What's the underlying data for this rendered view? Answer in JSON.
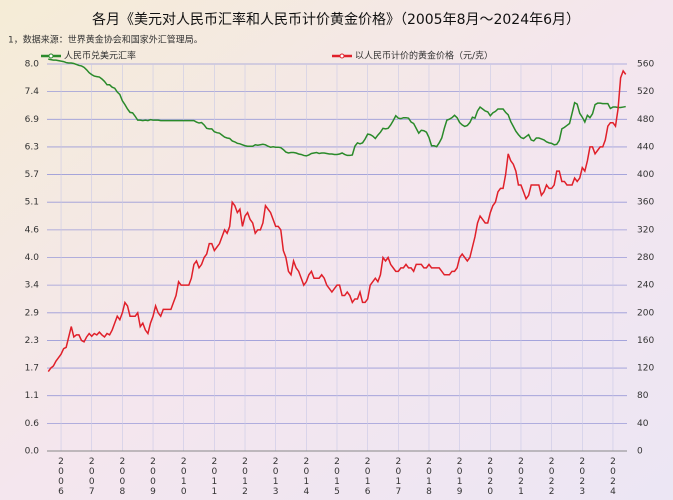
{
  "chart_data": {
    "type": "line",
    "title": "各月《美元对人民币汇率和人民币计价黄金价格》（2005年8月～2024年6月）",
    "note": "1，数据来源：世界黄金协会和国家外汇管理局。",
    "categories": [
      null,
      null,
      null,
      null,
      null,
      "2006",
      null,
      null,
      null,
      null,
      null,
      null,
      null,
      null,
      null,
      null,
      null,
      "2007",
      null,
      null,
      null,
      null,
      null,
      null,
      null,
      null,
      null,
      null,
      null,
      "2008",
      null,
      null,
      null,
      null,
      null,
      null,
      null,
      null,
      null,
      null,
      null,
      "2009",
      null,
      null,
      null,
      null,
      null,
      null,
      null,
      null,
      null,
      null,
      null,
      "2010",
      null,
      null,
      null,
      null,
      null,
      null,
      null,
      null,
      null,
      null,
      null,
      "2011",
      null,
      null,
      null,
      null,
      null,
      null,
      null,
      null,
      null,
      null,
      null,
      "2012",
      null,
      null,
      null,
      null,
      null,
      null,
      null,
      null,
      null,
      null,
      null,
      "2013",
      null,
      null,
      null,
      null,
      null,
      null,
      null,
      null,
      null,
      null,
      null,
      "2014",
      null,
      null,
      null,
      null,
      null,
      null,
      null,
      null,
      null,
      null,
      null,
      "2015",
      null,
      null,
      null,
      null,
      null,
      null,
      null,
      null,
      null,
      null,
      null,
      "2016",
      null,
      null,
      null,
      null,
      null,
      null,
      null,
      null,
      null,
      null,
      null,
      "2017",
      null,
      null,
      null,
      null,
      null,
      null,
      null,
      null,
      null,
      null,
      null,
      "2018",
      null,
      null,
      null,
      null,
      null,
      null,
      null,
      null,
      null,
      null,
      null,
      "2019",
      null,
      null,
      null,
      null,
      null,
      null,
      null,
      null,
      null,
      null,
      null,
      "2020",
      null,
      null,
      null,
      null,
      null,
      null,
      null,
      null,
      null,
      null,
      null,
      "2021",
      null,
      null,
      null,
      null,
      null,
      null,
      null,
      null,
      null,
      null,
      null,
      "2022",
      null,
      null,
      null,
      null,
      null,
      null,
      null,
      null,
      null,
      null,
      null,
      "2023",
      null,
      null,
      null,
      null,
      null,
      null,
      null,
      null,
      null,
      null,
      null,
      "2024",
      null,
      null,
      null,
      null,
      null
    ],
    "series": [
      {
        "name": "人民币兑美元汇率",
        "color": "#2a8a2a",
        "axis": "y",
        "values": [
          8.1,
          8.09,
          8.08,
          8.08,
          8.07,
          8.06,
          8.05,
          8.03,
          8.02,
          8.02,
          8.01,
          7.99,
          7.97,
          7.96,
          7.93,
          7.88,
          7.82,
          7.78,
          7.75,
          7.74,
          7.73,
          7.69,
          7.64,
          7.57,
          7.57,
          7.52,
          7.5,
          7.42,
          7.37,
          7.24,
          7.16,
          7.07,
          7.0,
          6.99,
          6.92,
          6.84,
          6.84,
          6.83,
          6.84,
          6.83,
          6.85,
          6.84,
          6.84,
          6.84,
          6.83,
          6.83,
          6.83,
          6.83,
          6.83,
          6.83,
          6.83,
          6.83,
          6.83,
          6.83,
          6.83,
          6.83,
          6.83,
          6.83,
          6.8,
          6.78,
          6.79,
          6.74,
          6.67,
          6.66,
          6.66,
          6.6,
          6.58,
          6.57,
          6.53,
          6.49,
          6.47,
          6.46,
          6.41,
          6.39,
          6.36,
          6.35,
          6.33,
          6.31,
          6.3,
          6.3,
          6.3,
          6.33,
          6.32,
          6.33,
          6.34,
          6.33,
          6.3,
          6.28,
          6.29,
          6.28,
          6.28,
          6.27,
          6.23,
          6.18,
          6.16,
          6.17,
          6.17,
          6.16,
          6.14,
          6.13,
          6.11,
          6.1,
          6.12,
          6.15,
          6.16,
          6.17,
          6.15,
          6.16,
          6.16,
          6.15,
          6.14,
          6.14,
          6.13,
          6.13,
          6.14,
          6.16,
          6.13,
          6.11,
          6.11,
          6.12,
          6.3,
          6.37,
          6.35,
          6.37,
          6.45,
          6.55,
          6.54,
          6.51,
          6.46,
          6.53,
          6.59,
          6.67,
          6.66,
          6.67,
          6.74,
          6.83,
          6.93,
          6.88,
          6.87,
          6.89,
          6.89,
          6.88,
          6.8,
          6.77,
          6.67,
          6.57,
          6.63,
          6.62,
          6.59,
          6.48,
          6.31,
          6.31,
          6.29,
          6.37,
          6.47,
          6.67,
          6.84,
          6.86,
          6.89,
          6.94,
          6.89,
          6.79,
          6.74,
          6.71,
          6.73,
          6.79,
          6.9,
          6.88,
          7.03,
          7.11,
          7.07,
          7.03,
          7.01,
          6.93,
          6.99,
          7.02,
          7.07,
          7.07,
          7.07,
          7.0,
          6.95,
          6.81,
          6.71,
          6.61,
          6.54,
          6.48,
          6.46,
          6.5,
          6.54,
          6.43,
          6.41,
          6.47,
          6.47,
          6.45,
          6.43,
          6.39,
          6.37,
          6.36,
          6.33,
          6.34,
          6.42,
          6.66,
          6.69,
          6.73,
          6.77,
          6.98,
          7.2,
          7.17,
          6.98,
          6.9,
          6.8,
          6.94,
          6.89,
          6.97,
          7.16,
          7.19,
          7.19,
          7.18,
          7.18,
          7.18,
          7.08,
          7.11,
          7.11,
          7.1,
          7.1,
          7.11,
          7.12
        ]
      },
      {
        "name": "以人民币计价的黄金价格（元/克）",
        "color": "#e0202a",
        "axis": "y2",
        "values": [
          115,
          120,
          123,
          130,
          135,
          140,
          148,
          150,
          165,
          180,
          165,
          168,
          168,
          160,
          158,
          165,
          170,
          166,
          170,
          168,
          172,
          168,
          165,
          170,
          168,
          175,
          185,
          195,
          190,
          200,
          215,
          210,
          195,
          195,
          195,
          200,
          180,
          185,
          175,
          170,
          185,
          195,
          210,
          200,
          195,
          205,
          205,
          205,
          205,
          215,
          225,
          245,
          240,
          240,
          240,
          240,
          250,
          270,
          275,
          265,
          270,
          280,
          285,
          300,
          300,
          290,
          295,
          300,
          310,
          320,
          315,
          325,
          360,
          355,
          345,
          350,
          325,
          340,
          345,
          335,
          330,
          315,
          320,
          320,
          330,
          355,
          350,
          345,
          335,
          325,
          325,
          320,
          290,
          280,
          260,
          255,
          275,
          265,
          260,
          250,
          240,
          245,
          255,
          260,
          250,
          250,
          250,
          255,
          250,
          240,
          235,
          230,
          235,
          240,
          240,
          225,
          225,
          230,
          225,
          215,
          220,
          220,
          230,
          215,
          215,
          220,
          240,
          245,
          250,
          245,
          255,
          280,
          275,
          280,
          270,
          265,
          260,
          260,
          265,
          265,
          270,
          265,
          265,
          260,
          270,
          270,
          270,
          265,
          265,
          270,
          265,
          265,
          265,
          265,
          260,
          255,
          255,
          255,
          260,
          260,
          265,
          280,
          285,
          280,
          275,
          280,
          295,
          310,
          330,
          340,
          335,
          330,
          330,
          345,
          355,
          360,
          375,
          380,
          380,
          400,
          430,
          420,
          415,
          405,
          385,
          385,
          375,
          365,
          370,
          385,
          385,
          385,
          385,
          370,
          375,
          385,
          380,
          380,
          385,
          405,
          405,
          390,
          390,
          385,
          385,
          385,
          395,
          390,
          395,
          410,
          405,
          420,
          440,
          440,
          430,
          435,
          440,
          440,
          450,
          470,
          475,
          475,
          470,
          495,
          540,
          550,
          545
        ]
      }
    ],
    "ylim": [
      0,
      8
    ],
    "yticks": [
      {
        "value": 0,
        "label": "0.0"
      },
      {
        "value": 0.5714,
        "label": "0.6"
      },
      {
        "value": 1.1429,
        "label": "1.1"
      },
      {
        "value": 1.7143,
        "label": "1.7"
      },
      {
        "value": 2.2857,
        "label": "2.3"
      },
      {
        "value": 2.8571,
        "label": "2.9"
      },
      {
        "value": 3.4286,
        "label": "3.4"
      },
      {
        "value": 4,
        "label": "4.0"
      },
      {
        "value": 4.5714,
        "label": "4.6"
      },
      {
        "value": 5.1429,
        "label": "5.1"
      },
      {
        "value": 5.7143,
        "label": "5.7"
      },
      {
        "value": 6.2857,
        "label": "6.3"
      },
      {
        "value": 6.8571,
        "label": "6.9"
      },
      {
        "value": 7.4286,
        "label": "7.4"
      },
      {
        "value": 8,
        "label": "8.0"
      }
    ],
    "y2lim": [
      0,
      560
    ],
    "y2ticks": [
      0,
      40,
      80,
      120,
      160,
      200,
      240,
      280,
      320,
      360,
      400,
      440,
      480,
      520,
      560
    ],
    "grid": true
  }
}
